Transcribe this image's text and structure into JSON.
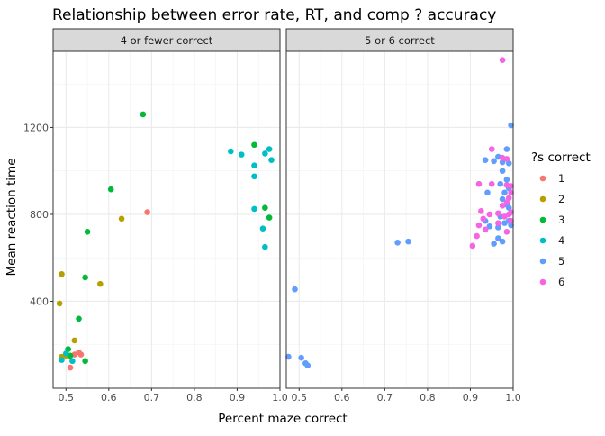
{
  "chart_data": {
    "type": "scatter",
    "title": "Relationship between error rate, RT, and comp ? accuracy",
    "xlabel": "Percent maze correct",
    "ylabel": "Mean reaction time",
    "xlim": [
      0.47,
      1.0
    ],
    "ylim": [
      0,
      1550
    ],
    "x_ticks": [
      0.5,
      0.6,
      0.7,
      0.8,
      0.9,
      1.0
    ],
    "x_tick_labels": [
      "0.5",
      "0.6",
      "0.7",
      "0.8",
      "0.9",
      "1.0"
    ],
    "y_ticks": [
      400,
      800,
      1200
    ],
    "y_tick_labels": [
      "400",
      "800",
      "1200"
    ],
    "grid": true,
    "legend": {
      "title": "?s correct",
      "position": "right",
      "entries": [
        {
          "label": "1",
          "color": "#F8766D"
        },
        {
          "label": "2",
          "color": "#B79F00"
        },
        {
          "label": "3",
          "color": "#00BA38"
        },
        {
          "label": "4",
          "color": "#00BFC4"
        },
        {
          "label": "5",
          "color": "#619CFF"
        },
        {
          "label": "6",
          "color": "#F564E3"
        }
      ]
    },
    "facets": [
      {
        "label": "4 or fewer correct",
        "series": [
          {
            "name": "1",
            "points": [
              [
                0.69,
                810
              ],
              [
                0.51,
                95
              ],
              [
                0.52,
                155
              ],
              [
                0.53,
                165
              ],
              [
                0.535,
                155
              ]
            ]
          },
          {
            "name": "2",
            "points": [
              [
                0.49,
                525
              ],
              [
                0.485,
                390
              ],
              [
                0.58,
                480
              ],
              [
                0.63,
                780
              ],
              [
                0.52,
                220
              ],
              [
                0.49,
                145
              ],
              [
                0.5,
                150
              ]
            ]
          },
          {
            "name": "3",
            "points": [
              [
                0.68,
                1260
              ],
              [
                0.605,
                915
              ],
              [
                0.55,
                720
              ],
              [
                0.545,
                510
              ],
              [
                0.53,
                320
              ],
              [
                0.505,
                180
              ],
              [
                0.545,
                125
              ],
              [
                0.51,
                150
              ],
              [
                0.94,
                1120
              ],
              [
                0.965,
                830
              ],
              [
                0.975,
                785
              ]
            ]
          },
          {
            "name": "4",
            "points": [
              [
                0.885,
                1090
              ],
              [
                0.91,
                1075
              ],
              [
                0.94,
                1025
              ],
              [
                0.94,
                975
              ],
              [
                0.94,
                825
              ],
              [
                0.965,
                1080
              ],
              [
                0.975,
                1100
              ],
              [
                0.98,
                1050
              ],
              [
                0.96,
                735
              ],
              [
                0.965,
                650
              ],
              [
                0.49,
                130
              ],
              [
                0.515,
                125
              ],
              [
                0.5,
                160
              ]
            ]
          }
        ]
      },
      {
        "label": "5 or 6 correct",
        "series": [
          {
            "name": "5",
            "points": [
              [
                0.995,
                1210
              ],
              [
                0.49,
                455
              ],
              [
                0.475,
                145
              ],
              [
                0.505,
                140
              ],
              [
                0.515,
                115
              ],
              [
                0.52,
                105
              ],
              [
                0.73,
                670
              ],
              [
                0.755,
                675
              ],
              [
                0.935,
                1050
              ],
              [
                0.955,
                1045
              ],
              [
                0.965,
                1065
              ],
              [
                0.975,
                1040
              ],
              [
                0.985,
                1100
              ],
              [
                0.99,
                1035
              ],
              [
                0.975,
                1000
              ],
              [
                0.985,
                960
              ],
              [
                0.99,
                920
              ],
              [
                0.97,
                940
              ],
              [
                0.98,
                900
              ],
              [
                0.975,
                870
              ],
              [
                0.985,
                845
              ],
              [
                0.99,
                830
              ],
              [
                0.97,
                790
              ],
              [
                0.98,
                760
              ],
              [
                0.965,
                740
              ],
              [
                0.99,
                770
              ],
              [
                0.995,
                750
              ],
              [
                0.965,
                690
              ],
              [
                0.975,
                675
              ],
              [
                0.955,
                665
              ],
              [
                0.935,
                770
              ],
              [
                0.945,
                745
              ],
              [
                0.94,
                900
              ]
            ]
          },
          {
            "name": "6",
            "points": [
              [
                0.975,
                1510
              ],
              [
                0.95,
                1100
              ],
              [
                0.975,
                1060
              ],
              [
                0.985,
                1055
              ],
              [
                0.92,
                940
              ],
              [
                0.95,
                940
              ],
              [
                0.985,
                935
              ],
              [
                0.995,
                930
              ],
              [
                0.995,
                900
              ],
              [
                0.99,
                875
              ],
              [
                0.985,
                855
              ],
              [
                0.975,
                840
              ],
              [
                0.925,
                815
              ],
              [
                0.945,
                800
              ],
              [
                0.965,
                805
              ],
              [
                0.995,
                810
              ],
              [
                0.99,
                800
              ],
              [
                0.98,
                790
              ],
              [
                0.92,
                750
              ],
              [
                0.93,
                780
              ],
              [
                0.995,
                770
              ],
              [
                0.935,
                730
              ],
              [
                0.985,
                720
              ],
              [
                0.915,
                700
              ],
              [
                0.905,
                655
              ],
              [
                0.965,
                760
              ]
            ]
          }
        ]
      }
    ]
  }
}
